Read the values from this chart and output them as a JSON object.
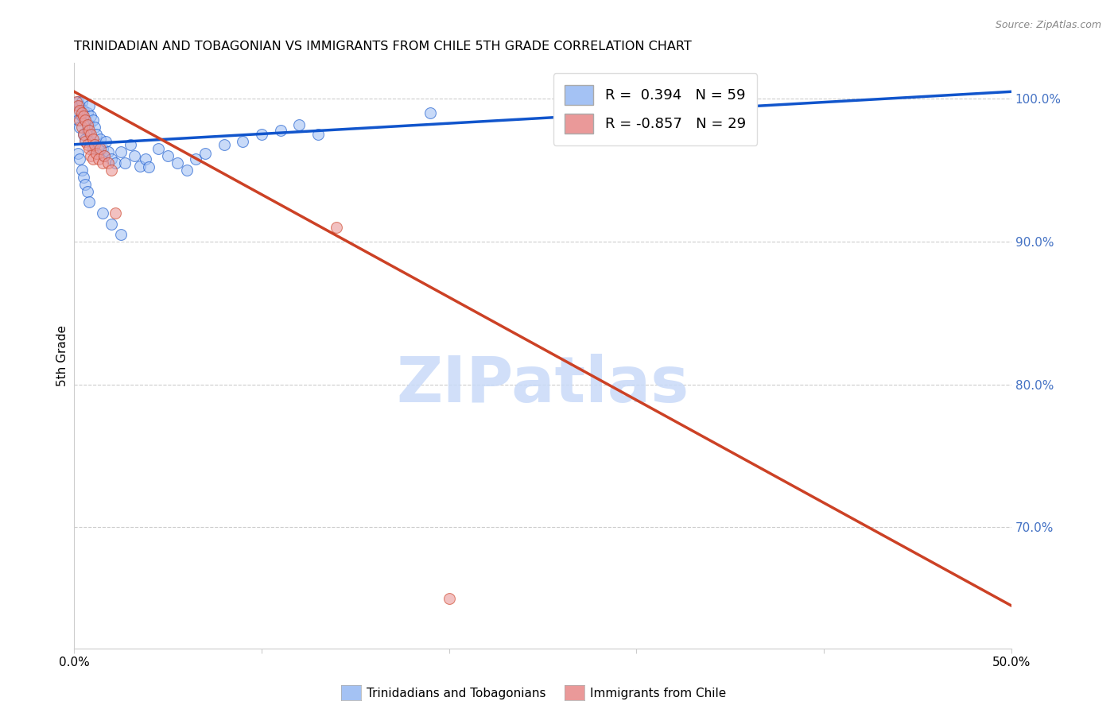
{
  "title": "TRINIDADIAN AND TOBAGONIAN VS IMMIGRANTS FROM CHILE 5TH GRADE CORRELATION CHART",
  "source": "Source: ZipAtlas.com",
  "ylabel": "5th Grade",
  "legend_blue_label": "Trinidadians and Tobagonians",
  "legend_pink_label": "Immigrants from Chile",
  "R_blue": 0.394,
  "N_blue": 59,
  "R_pink": -0.857,
  "N_pink": 29,
  "blue_color": "#a4c2f4",
  "pink_color": "#ea9999",
  "blue_line_color": "#1155cc",
  "pink_line_color": "#cc4125",
  "watermark_color": "#c9daf8",
  "xlim": [
    0.0,
    0.5
  ],
  "ylim": [
    0.615,
    1.025
  ],
  "yticks": [
    1.0,
    0.9,
    0.8,
    0.7
  ],
  "ytick_labels": [
    "100.0%",
    "90.0%",
    "80.0%",
    "70.0%"
  ],
  "xtick_positions": [
    0.0,
    0.1,
    0.2,
    0.3,
    0.4,
    0.5
  ],
  "xtick_labels": [
    "0.0%",
    "",
    "",
    "",
    "",
    "50.0%"
  ],
  "blue_line_x": [
    0.0,
    0.5
  ],
  "blue_line_y": [
    0.968,
    1.005
  ],
  "pink_line_x": [
    0.0,
    0.5
  ],
  "pink_line_y": [
    1.005,
    0.645
  ],
  "blue_points": [
    [
      0.001,
      0.99
    ],
    [
      0.002,
      0.998
    ],
    [
      0.002,
      0.985
    ],
    [
      0.003,
      0.995
    ],
    [
      0.003,
      0.98
    ],
    [
      0.004,
      0.998
    ],
    [
      0.004,
      0.988
    ],
    [
      0.005,
      0.992
    ],
    [
      0.005,
      0.975
    ],
    [
      0.006,
      0.985
    ],
    [
      0.006,
      0.972
    ],
    [
      0.007,
      0.99
    ],
    [
      0.007,
      0.978
    ],
    [
      0.008,
      0.995
    ],
    [
      0.008,
      0.982
    ],
    [
      0.009,
      0.988
    ],
    [
      0.009,
      0.97
    ],
    [
      0.01,
      0.985
    ],
    [
      0.01,
      0.965
    ],
    [
      0.011,
      0.98
    ],
    [
      0.012,
      0.975
    ],
    [
      0.013,
      0.968
    ],
    [
      0.014,
      0.972
    ],
    [
      0.015,
      0.965
    ],
    [
      0.016,
      0.96
    ],
    [
      0.017,
      0.97
    ],
    [
      0.018,
      0.963
    ],
    [
      0.02,
      0.958
    ],
    [
      0.022,
      0.955
    ],
    [
      0.025,
      0.963
    ],
    [
      0.027,
      0.955
    ],
    [
      0.03,
      0.968
    ],
    [
      0.032,
      0.96
    ],
    [
      0.035,
      0.953
    ],
    [
      0.038,
      0.958
    ],
    [
      0.04,
      0.952
    ],
    [
      0.045,
      0.965
    ],
    [
      0.05,
      0.96
    ],
    [
      0.055,
      0.955
    ],
    [
      0.06,
      0.95
    ],
    [
      0.065,
      0.958
    ],
    [
      0.07,
      0.962
    ],
    [
      0.08,
      0.968
    ],
    [
      0.09,
      0.97
    ],
    [
      0.1,
      0.975
    ],
    [
      0.11,
      0.978
    ],
    [
      0.12,
      0.982
    ],
    [
      0.13,
      0.975
    ],
    [
      0.002,
      0.962
    ],
    [
      0.003,
      0.958
    ],
    [
      0.004,
      0.95
    ],
    [
      0.005,
      0.945
    ],
    [
      0.006,
      0.94
    ],
    [
      0.007,
      0.935
    ],
    [
      0.008,
      0.928
    ],
    [
      0.015,
      0.92
    ],
    [
      0.02,
      0.912
    ],
    [
      0.025,
      0.905
    ],
    [
      0.19,
      0.99
    ]
  ],
  "pink_points": [
    [
      0.001,
      0.998
    ],
    [
      0.002,
      0.995
    ],
    [
      0.003,
      0.992
    ],
    [
      0.003,
      0.985
    ],
    [
      0.004,
      0.99
    ],
    [
      0.004,
      0.98
    ],
    [
      0.005,
      0.988
    ],
    [
      0.005,
      0.975
    ],
    [
      0.006,
      0.985
    ],
    [
      0.006,
      0.97
    ],
    [
      0.007,
      0.982
    ],
    [
      0.007,
      0.968
    ],
    [
      0.008,
      0.978
    ],
    [
      0.008,
      0.965
    ],
    [
      0.009,
      0.975
    ],
    [
      0.009,
      0.96
    ],
    [
      0.01,
      0.972
    ],
    [
      0.01,
      0.958
    ],
    [
      0.011,
      0.968
    ],
    [
      0.012,
      0.962
    ],
    [
      0.013,
      0.958
    ],
    [
      0.014,
      0.965
    ],
    [
      0.015,
      0.955
    ],
    [
      0.016,
      0.96
    ],
    [
      0.018,
      0.955
    ],
    [
      0.02,
      0.95
    ],
    [
      0.022,
      0.92
    ],
    [
      0.14,
      0.91
    ],
    [
      0.2,
      0.65
    ]
  ]
}
